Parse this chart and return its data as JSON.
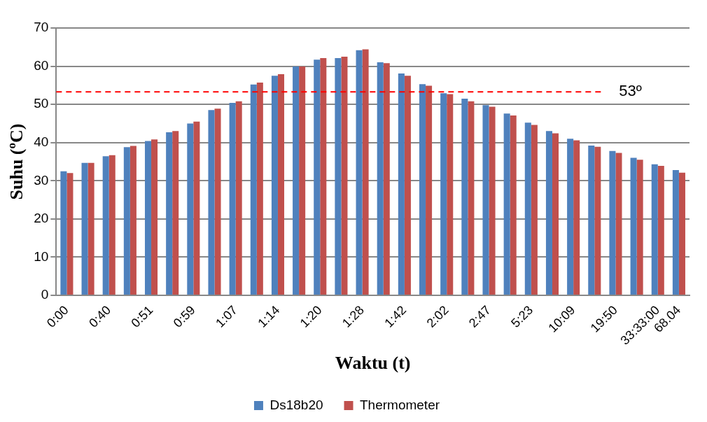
{
  "chart_data": {
    "type": "bar",
    "xlabel": "Waktu (t)",
    "ylabel": "Suhu (ºC)",
    "categories": [
      "0:00",
      null,
      "0:40",
      null,
      "0:51",
      null,
      "0:59",
      null,
      "1:07",
      null,
      "1:14",
      null,
      "1:20",
      null,
      "1:28",
      null,
      "1:42",
      null,
      "2:02",
      null,
      "2:47",
      null,
      "5:23",
      null,
      "10:09",
      null,
      "19:50",
      null,
      "33:33:00",
      "68.04"
    ],
    "series": [
      {
        "name": "Ds18b20",
        "color": "#4f81bd",
        "values": [
          32.5,
          34.7,
          36.4,
          38.8,
          40.4,
          42.7,
          45.0,
          48.5,
          50.4,
          55.2,
          57.5,
          59.9,
          61.7,
          62.1,
          64.2,
          61.0,
          58.1,
          55.3,
          52.9,
          51.5,
          49.8,
          47.6,
          45.2,
          43.0,
          41.0,
          39.2,
          37.8,
          36.0,
          34.3,
          32.8
        ]
      },
      {
        "name": "Thermometer",
        "color": "#c0504d",
        "values": [
          32.0,
          34.7,
          36.7,
          39.1,
          40.8,
          43.0,
          45.5,
          48.9,
          50.8,
          55.7,
          57.9,
          59.9,
          62.1,
          62.5,
          64.4,
          60.8,
          57.5,
          54.9,
          52.7,
          50.8,
          49.4,
          47.1,
          44.6,
          42.4,
          40.6,
          38.9,
          37.3,
          35.5,
          33.9,
          32.1
        ]
      }
    ],
    "ylim": [
      0,
      70
    ],
    "yticks": [
      0,
      10,
      20,
      30,
      40,
      50,
      60,
      70
    ],
    "grid": "y",
    "legend": "bottom",
    "ref_lines": [
      {
        "axis": "y",
        "value": 53.3,
        "label": "53º",
        "color": "#ff0000",
        "line_style": "dashed"
      }
    ]
  }
}
